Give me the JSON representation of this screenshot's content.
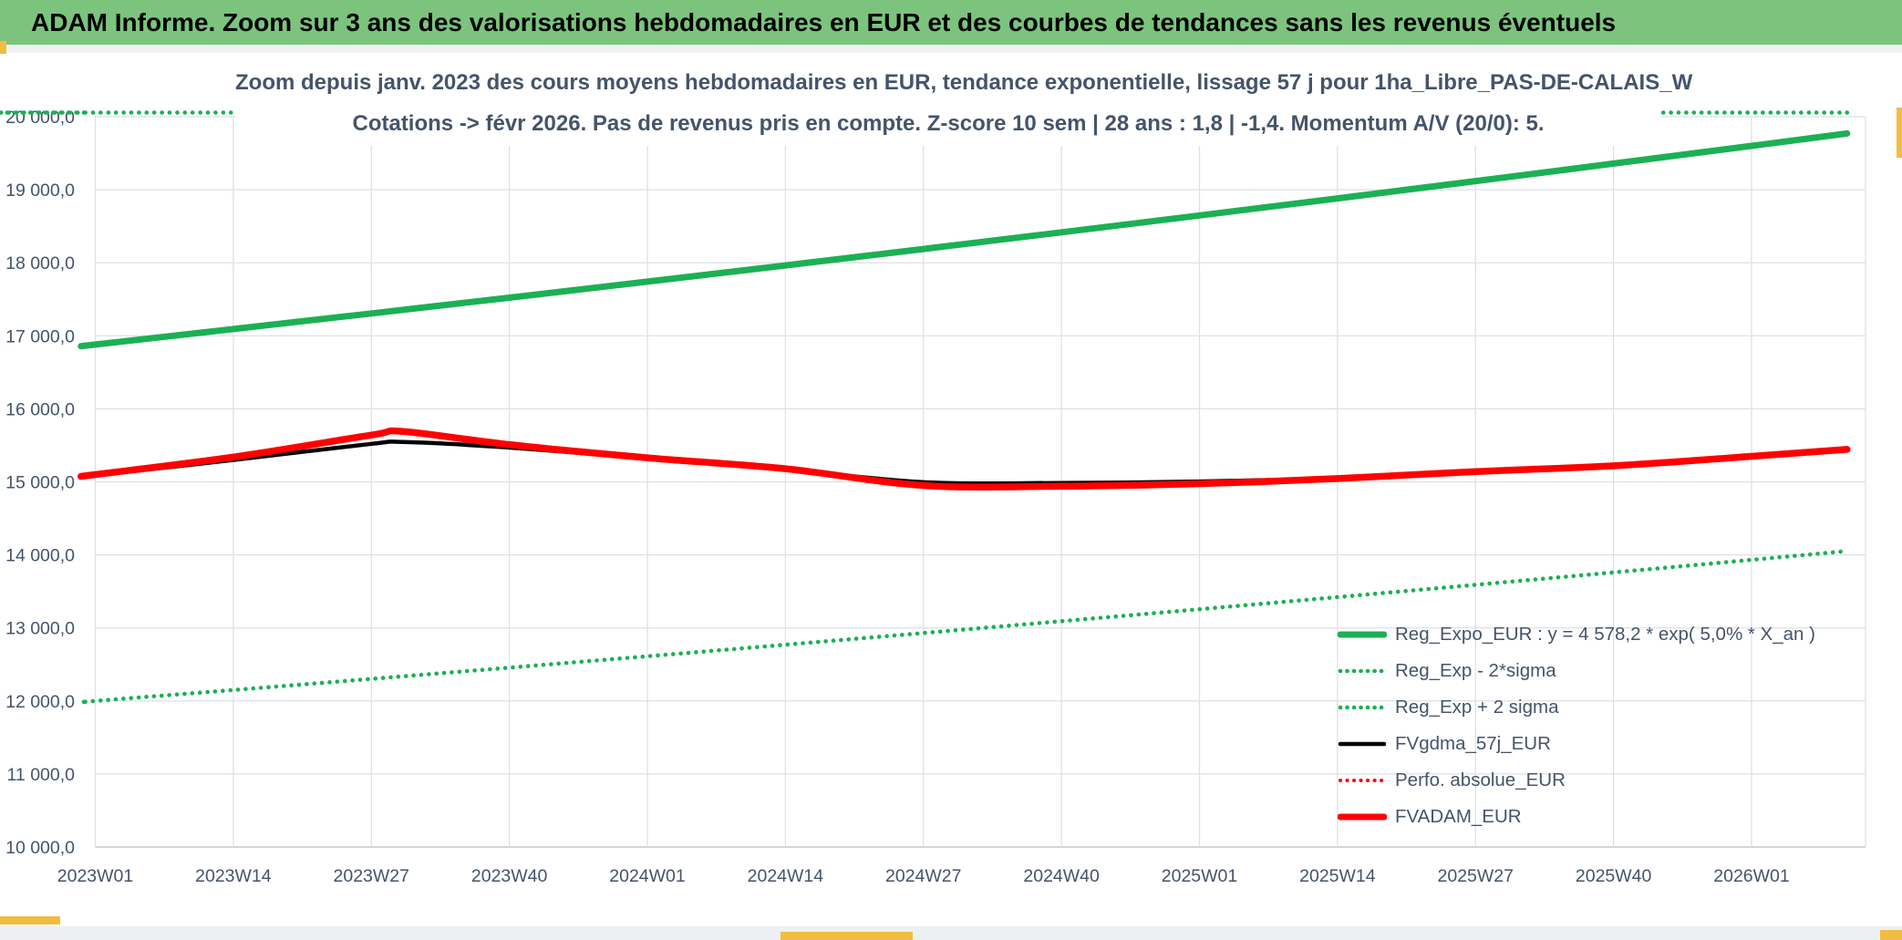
{
  "window": {
    "title_bar": "ADAM Informe. Zoom sur 3 ans des valorisations hebdomadaires en EUR et des courbes de tendances sans les revenus éventuels"
  },
  "colors": {
    "header_green": "#7cc47e",
    "line_green": "#1cb054",
    "line_red": "#ff0000",
    "line_black": "#000000",
    "text_dark": "#44546a",
    "gridline": "#dce1e7",
    "axis_line": "#c3c9d0",
    "accent_yellow": "#f0bd41"
  },
  "chart_data": {
    "type": "line",
    "title": "Zoom depuis janv. 2023 des cours moyens hebdomadaires en EUR, tendance exponentielle, lissage 57 j pour 1ha_Libre_PAS-DE-CALAIS_W",
    "subtitle": "Cotations -> févr 2026. Pas de revenus pris en compte. Z-score 10 sem | 28 ans : 1,8 | -1,4. Momentum A/V (20/0): 5.",
    "x_axis": {
      "unit": "semaine ISO",
      "ticks": [
        {
          "week": 0,
          "label": "2023W01"
        },
        {
          "week": 13,
          "label": "2023W14"
        },
        {
          "week": 26,
          "label": "2023W27"
        },
        {
          "week": 39,
          "label": "2023W40"
        },
        {
          "week": 52,
          "label": "2024W01"
        },
        {
          "week": 65,
          "label": "2024W14"
        },
        {
          "week": 78,
          "label": "2024W27"
        },
        {
          "week": 91,
          "label": "2024W40"
        },
        {
          "week": 104,
          "label": "2025W01"
        },
        {
          "week": 117,
          "label": "2025W14"
        },
        {
          "week": 130,
          "label": "2025W27"
        },
        {
          "week": 143,
          "label": "2025W40"
        },
        {
          "week": 156,
          "label": "2026W01"
        }
      ],
      "data_end_week": 165
    },
    "y_axis": {
      "min": 10000,
      "max": 20000,
      "step": 1000,
      "tick_labels_bottom_to_top": [
        "10 000,0",
        "11 000,0",
        "12 000,0",
        "13 000,0",
        "14 000,0",
        "15 000,0",
        "16 000,0",
        "17 000,0",
        "18 000,0",
        "19 000,0",
        "20 000,0"
      ]
    },
    "grid": true,
    "legend_position": "inside-bottom-right",
    "legend_order": [
      2,
      1,
      0,
      3,
      4,
      5
    ],
    "series": [
      {
        "key": "reg_plus",
        "name": "Reg_Exp + 2 sigma",
        "color": "#1cb054",
        "style": "dotted",
        "width": 4.6,
        "clipped_top": true,
        "note": "Valeurs au-dessus du maximum de l'axe (20 000) : tracé écrêté le long du bord supérieur du graphique",
        "x_weeks": [
          0,
          165
        ],
        "values": [
          20000,
          20000
        ]
      },
      {
        "key": "reg_minus",
        "name": "Reg_Exp - 2*sigma",
        "color": "#1cb054",
        "style": "dotted",
        "width": 4.6,
        "x_weeks": [
          0,
          13,
          26,
          39,
          52,
          65,
          78,
          91,
          104,
          117,
          130,
          143,
          156,
          165
        ],
        "values": [
          12000,
          12150,
          12302,
          12456,
          12612,
          12770,
          12930,
          13092,
          13256,
          13422,
          13590,
          13760,
          13932,
          14053
        ]
      },
      {
        "key": "reg_expo",
        "name": "Reg_Expo_EUR : y = 4 578,2 * exp( 5,0% *  X_an )",
        "color": "#1cb054",
        "style": "solid",
        "width": 7,
        "x_weeks": [
          0,
          13,
          26,
          39,
          52,
          65,
          78,
          91,
          104,
          117,
          130,
          143,
          156,
          165
        ],
        "values": [
          16880,
          17092,
          17306,
          17522,
          17742,
          17964,
          18189,
          18417,
          18648,
          18882,
          19118,
          19358,
          19600,
          19770
        ]
      },
      {
        "key": "fvgdma_57j",
        "name": "FVgdma_57j_EUR",
        "color": "#000000",
        "style": "solid",
        "width": 4.5,
        "x_weeks": [
          0,
          13,
          26,
          29,
          39,
          52,
          65,
          78,
          91,
          104,
          117,
          130,
          143,
          156,
          164
        ],
        "values": [
          15090,
          15300,
          15520,
          15545,
          15470,
          15320,
          15170,
          14995,
          14985,
          15005,
          15050,
          15140,
          15210,
          15340,
          15420
        ]
      },
      {
        "key": "perfo_absolue",
        "name": "Perfo. absolue_EUR",
        "color": "#ff0000",
        "style": "dotted",
        "width": 4,
        "note": "Confondue avec FVADAM_EUR (masquée dessous)",
        "x_weeks": [
          0,
          13,
          26,
          29,
          39,
          52,
          65,
          78,
          91,
          104,
          117,
          130,
          143,
          156,
          165
        ],
        "values": [
          15100,
          15340,
          15640,
          15690,
          15510,
          15330,
          15180,
          14950,
          14940,
          14975,
          15045,
          15140,
          15220,
          15350,
          15445
        ]
      },
      {
        "key": "fvadam",
        "name": "FVADAM_EUR",
        "color": "#ff0000",
        "style": "solid",
        "width": 7.5,
        "x_weeks": [
          0,
          13,
          26,
          29,
          39,
          52,
          65,
          78,
          91,
          104,
          117,
          130,
          143,
          156,
          165
        ],
        "values": [
          15100,
          15340,
          15640,
          15690,
          15510,
          15330,
          15180,
          14950,
          14940,
          14975,
          15045,
          15140,
          15220,
          15350,
          15445
        ]
      }
    ]
  }
}
